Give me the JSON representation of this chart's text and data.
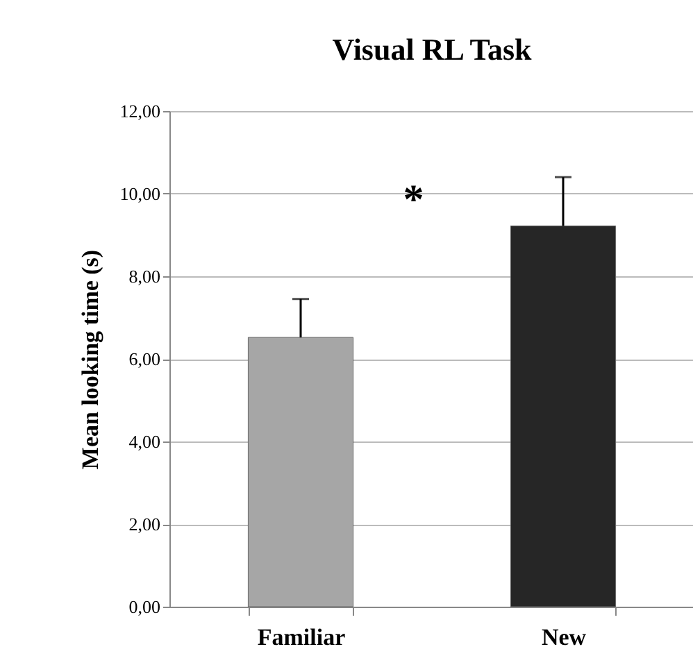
{
  "chart_data": {
    "type": "bar",
    "title": "Visual RL Task",
    "ylabel": "Mean looking time (s)",
    "categories": [
      "Familiar",
      "New"
    ],
    "values": [
      6.52,
      9.22
    ],
    "colors": [
      "#a6a6a6",
      "#262626"
    ],
    "errors": [
      [
        6.52,
        7.45
      ],
      [
        9.22,
        10.4
      ]
    ],
    "ylim": [
      0,
      12
    ],
    "yticks": [
      {
        "value": 0,
        "label": "0,00"
      },
      {
        "value": 2,
        "label": "2,00"
      },
      {
        "value": 4,
        "label": "4,00"
      },
      {
        "value": 6,
        "label": "6,00"
      },
      {
        "value": 8,
        "label": "8,00"
      },
      {
        "value": 10,
        "label": "10,00"
      },
      {
        "value": 12,
        "label": "12,00"
      }
    ],
    "grid": "y",
    "annotations": [
      "*"
    ]
  }
}
